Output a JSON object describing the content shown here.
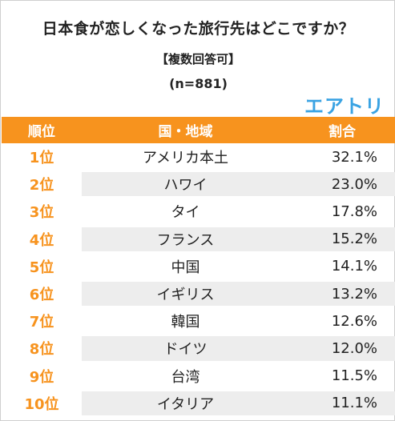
{
  "title": "日本食が恋しくなった旅行先はどこですか？",
  "subtitle": "【複数回答可】",
  "sample": "(n=881)",
  "logo": "エアトリ",
  "colors": {
    "accent": "#f7931e",
    "logo": "#3aa3e3",
    "shade": "#ededed"
  },
  "table": {
    "headers": [
      "順位",
      "国・地域",
      "割合"
    ],
    "rows": [
      {
        "rank": "1位",
        "place": "アメリカ本土",
        "pct": "32.1%"
      },
      {
        "rank": "2位",
        "place": "ハワイ",
        "pct": "23.0%"
      },
      {
        "rank": "3位",
        "place": "タイ",
        "pct": "17.8%"
      },
      {
        "rank": "4位",
        "place": "フランス",
        "pct": "15.2%"
      },
      {
        "rank": "5位",
        "place": "中国",
        "pct": "14.1%"
      },
      {
        "rank": "6位",
        "place": "イギリス",
        "pct": "13.2%"
      },
      {
        "rank": "7位",
        "place": "韓国",
        "pct": "12.6%"
      },
      {
        "rank": "8位",
        "place": "ドイツ",
        "pct": "12.0%"
      },
      {
        "rank": "9位",
        "place": "台湾",
        "pct": "11.5%"
      },
      {
        "rank": "10位",
        "place": "イタリア",
        "pct": "11.1%"
      }
    ]
  }
}
